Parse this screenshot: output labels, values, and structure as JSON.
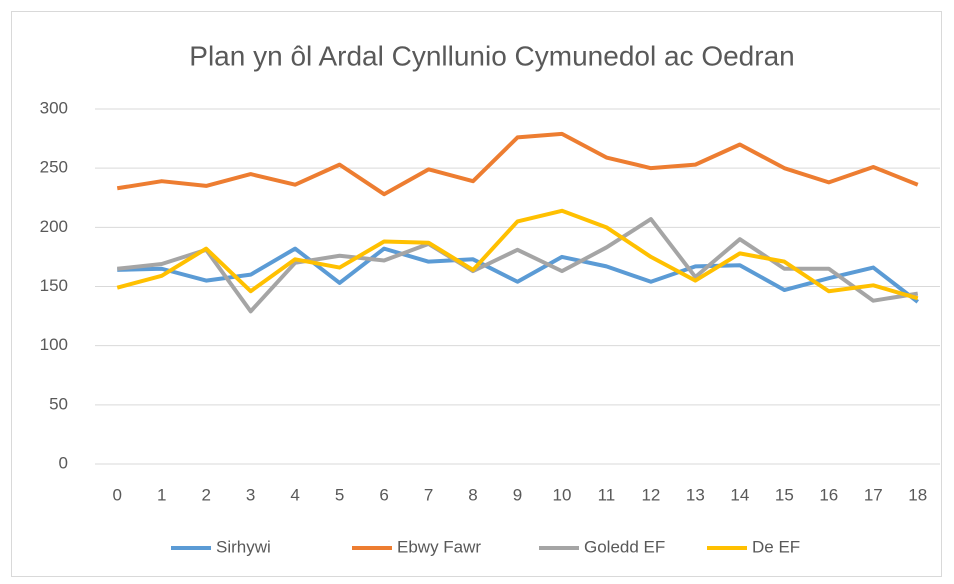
{
  "chart_data": {
    "type": "line",
    "title": "Plan yn ôl Ardal Cynllunio Cymunedol ac Oedran",
    "categories": [
      "0",
      "1",
      "2",
      "3",
      "4",
      "5",
      "6",
      "7",
      "8",
      "9",
      "10",
      "11",
      "12",
      "13",
      "14",
      "15",
      "16",
      "17",
      "18"
    ],
    "series": [
      {
        "name": "Sirhywi",
        "color": "#5b9bd5",
        "values": [
          164,
          165,
          155,
          160,
          182,
          153,
          182,
          171,
          173,
          154,
          175,
          167,
          154,
          167,
          168,
          147,
          157,
          166,
          137
        ]
      },
      {
        "name": "Ebwy Fawr",
        "color": "#ed7d31",
        "values": [
          233,
          239,
          235,
          245,
          236,
          253,
          228,
          249,
          239,
          276,
          279,
          259,
          250,
          253,
          270,
          250,
          238,
          251,
          236
        ]
      },
      {
        "name": "Goledd EF",
        "color": "#a5a5a5",
        "values": [
          165,
          169,
          181,
          129,
          170,
          176,
          172,
          186,
          163,
          181,
          163,
          183,
          207,
          158,
          190,
          165,
          165,
          138,
          144
        ]
      },
      {
        "name": "De EF",
        "color": "#ffc000",
        "values": [
          149,
          159,
          182,
          146,
          173,
          166,
          188,
          187,
          164,
          205,
          214,
          200,
          175,
          155,
          178,
          171,
          146,
          151,
          140
        ]
      }
    ],
    "ylim": [
      0,
      300
    ],
    "yticks": [
      0,
      50,
      100,
      150,
      200,
      250,
      300
    ],
    "grid": true,
    "legend": "bottom"
  }
}
